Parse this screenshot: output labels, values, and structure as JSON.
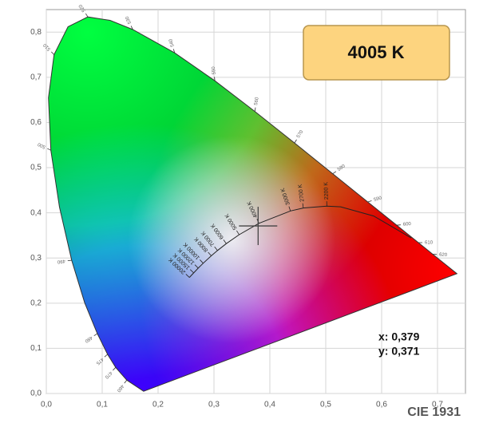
{
  "chart_data": {
    "type": "chromaticity",
    "title": "CIE 1931",
    "badge": "4005 K",
    "xlim": [
      0,
      0.75
    ],
    "ylim": [
      0,
      0.85
    ],
    "xticks": [
      {
        "value": 0,
        "label": "0,0"
      },
      {
        "value": 0.1,
        "label": "0,1"
      },
      {
        "value": 0.2,
        "label": "0,2"
      },
      {
        "value": 0.3,
        "label": "0,3"
      },
      {
        "value": 0.4,
        "label": "0,4"
      },
      {
        "value": 0.5,
        "label": "0,5"
      },
      {
        "value": 0.6,
        "label": "0,6"
      },
      {
        "value": 0.7,
        "label": "0,7"
      }
    ],
    "yticks": [
      {
        "value": 0,
        "label": "0,0"
      },
      {
        "value": 0.1,
        "label": "0,1"
      },
      {
        "value": 0.2,
        "label": "0,2"
      },
      {
        "value": 0.3,
        "label": "0,3"
      },
      {
        "value": 0.4,
        "label": "0,4"
      },
      {
        "value": 0.5,
        "label": "0,5"
      },
      {
        "value": 0.6,
        "label": "0,6"
      },
      {
        "value": 0.7,
        "label": "0,7"
      },
      {
        "value": 0.8,
        "label": "0,8"
      }
    ],
    "grid": true,
    "spectral_locus": {
      "x": [
        0.1741,
        0.144,
        0.1241,
        0.1096,
        0.0913,
        0.0687,
        0.0454,
        0.0235,
        0.0082,
        0.0039,
        0.0139,
        0.0389,
        0.0743,
        0.1142,
        0.1547,
        0.2296,
        0.3016,
        0.3731,
        0.4441,
        0.5125,
        0.5752,
        0.627,
        0.6658,
        0.6915,
        0.719,
        0.7347
      ],
      "y": [
        0.005,
        0.0297,
        0.0578,
        0.0868,
        0.1327,
        0.2007,
        0.295,
        0.4127,
        0.5384,
        0.6548,
        0.7502,
        0.812,
        0.8338,
        0.8262,
        0.8059,
        0.7543,
        0.6923,
        0.6245,
        0.5547,
        0.4866,
        0.4242,
        0.3725,
        0.334,
        0.3083,
        0.2809,
        0.2653
      ],
      "labels": [
        null,
        460,
        470,
        475,
        480,
        null,
        490,
        null,
        500,
        null,
        510,
        null,
        520,
        null,
        530,
        540,
        550,
        560,
        570,
        580,
        590,
        600,
        610,
        620,
        null,
        null
      ]
    },
    "planckian_locus": {
      "x": [
        0.6528,
        0.5857,
        0.5267,
        0.502,
        0.4599,
        0.4369,
        0.3805,
        0.3451,
        0.3221,
        0.3064,
        0.2952,
        0.2807,
        0.2719,
        0.2637,
        0.256
      ],
      "y": [
        0.3444,
        0.3931,
        0.4133,
        0.415,
        0.4106,
        0.4041,
        0.3768,
        0.3516,
        0.3318,
        0.3166,
        0.3048,
        0.2884,
        0.2776,
        0.2671,
        0.257
      ],
      "labels": [
        null,
        null,
        null,
        "2200 K",
        "2700 K",
        "3000 K",
        "4000 K",
        "5000 K",
        "6000 K",
        "7000 K",
        "8000 K",
        "10000 K",
        "12000 K",
        "15000 K",
        "20000 K"
      ]
    },
    "point": {
      "x": 0.379,
      "y": 0.371,
      "x_label": "x: 0,379",
      "y_label": "y: 0,371"
    }
  }
}
